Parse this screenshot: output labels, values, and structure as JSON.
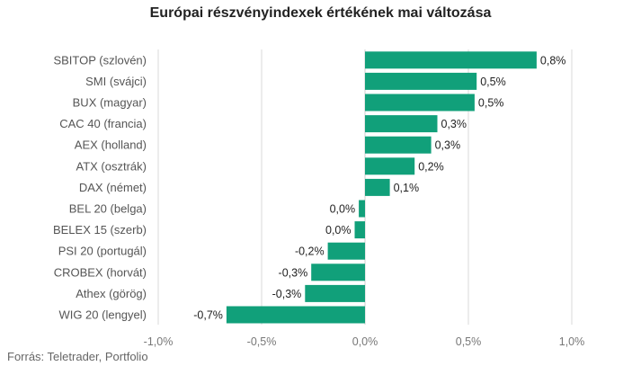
{
  "chart_data": {
    "type": "bar",
    "orientation": "horizontal",
    "title": "Európai részvényindexek értékének mai változása",
    "categories": [
      "SBITOP (szlovén)",
      "SMI (svájci)",
      "BUX (magyar)",
      "CAC 40 (francia)",
      "AEX (holland)",
      "ATX (osztrák)",
      "DAX (német)",
      "BEL 20 (belga)",
      "BELEX 15 (szerb)",
      "PSI 20 (portugál)",
      "CROBEX (horvát)",
      "Athex (görög)",
      "WIG 20 (lengyel)"
    ],
    "values": [
      0.83,
      0.54,
      0.53,
      0.35,
      0.32,
      0.24,
      0.12,
      -0.03,
      -0.05,
      -0.18,
      -0.26,
      -0.29,
      -0.67
    ],
    "value_labels": [
      "0,8%",
      "0,5%",
      "0,5%",
      "0,3%",
      "0,3%",
      "0,2%",
      "0,1%",
      "0,0%",
      "0,0%",
      "-0,2%",
      "-0,3%",
      "-0,3%",
      "-0,7%"
    ],
    "xlim": [
      -1.0,
      1.0
    ],
    "xticks": [
      -1.0,
      -0.5,
      0.0,
      0.5,
      1.0
    ],
    "xtick_labels": [
      "-1,0%",
      "-0,5%",
      "0,0%",
      "0,5%",
      "1,0%"
    ],
    "grid": true,
    "legend": "none",
    "bar_color": "#11a07a",
    "grid_color": "#d9d9d9"
  },
  "source": "Forrás: Teletrader, Portfolio"
}
